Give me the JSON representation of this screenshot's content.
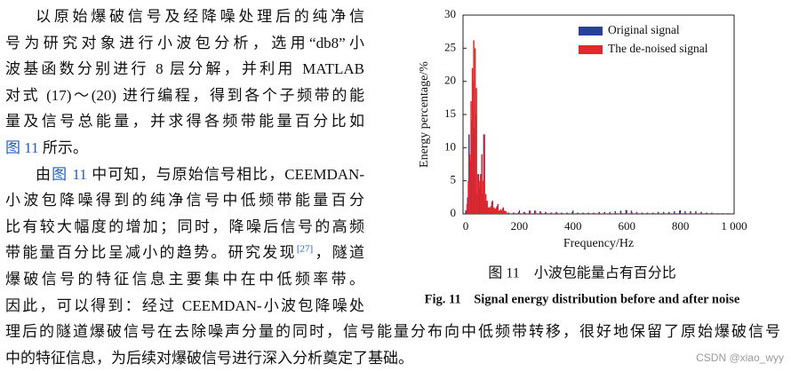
{
  "document": {
    "paragraph_1": [
      "以原始爆破信号及经降噪处理后的纯净信",
      "号为研究对象进行小波包分析，选用“db8”小",
      "波基函数分别进行 8 层分解，并利用 MATLAB",
      "对式 (17)～(20) 进行编程，得到各个子频带的能",
      "量及信号总能量，并求得各频带能量百分比如",
      [
        "图 11",
        " 所示。"
      ]
    ],
    "paragraph_2": [
      [
        "由",
        "图 11",
        " 中可知，与原始信号相比，CEEMDAN-"
      ],
      "小波包降噪得到的纯净信号中低频带能量百分",
      "比有较大幅度的增加；同时，降噪后信号的高频",
      [
        "带能量百分比呈减小的趋势。研究发现",
        "[27]",
        "，隧道"
      ],
      "爆破信号的特征信息主要集中在中低频率带。",
      "因此，可以得到：经过 CEEMDAN-小波包降噪处",
      "理后的隧道爆破信号在去除噪声分量的同时，信号能量分布向中低频带转移，很好地保留了原始爆破信号",
      "中的特征信息，为后续对爆破信号进行深入分析奠定了基础。"
    ]
  },
  "figure": {
    "caption_cn": "图 11　小波包能量占有百分比",
    "caption_en": "Fig. 11　Signal energy distribution before and after noise"
  },
  "chart_data": {
    "type": "bar",
    "x_label": "Frequency/Hz",
    "y_label": "Energy percentage/%",
    "x": [
      5,
      10,
      15,
      20,
      25,
      30,
      35,
      40,
      45,
      50,
      55,
      60,
      65,
      70,
      75,
      80,
      85,
      90,
      95,
      100,
      105,
      110,
      115,
      120,
      125,
      130,
      135,
      140,
      145,
      150,
      160,
      180,
      200,
      220,
      240,
      260,
      280,
      300,
      320,
      340,
      360,
      380,
      400,
      420,
      440,
      460,
      480,
      500,
      520,
      540,
      560,
      580,
      600,
      620,
      640,
      660,
      680,
      700,
      720,
      740,
      760,
      780,
      800,
      820,
      840,
      860,
      880,
      900,
      920,
      940,
      960,
      980
    ],
    "series": [
      {
        "name": "Original signal",
        "color": "#27409a",
        "values": [
          0.5,
          2.5,
          12,
          8,
          14,
          20,
          13,
          15,
          3,
          6,
          4,
          6,
          3,
          12,
          2,
          1.5,
          0.8,
          0.6,
          1,
          1.8,
          0.8,
          0.5,
          0.7,
          1.2,
          0.3,
          0.5,
          0.4,
          0.8,
          0.3,
          0.3,
          0.2,
          0.2,
          0.3,
          0.3,
          0.5,
          0.5,
          0.4,
          0.3,
          0.2,
          0.3,
          0.2,
          0.2,
          0.3,
          0.2,
          0.2,
          0.2,
          0.2,
          0.3,
          0.3,
          0.3,
          0.4,
          0.5,
          0.6,
          0.5,
          0.3,
          0.2,
          0.2,
          0.2,
          0.3,
          0.3,
          0.3,
          0.4,
          0.5,
          0.4,
          0.4,
          0.4,
          0.3,
          0.2,
          0.2,
          0.1,
          0.1,
          0.1
        ]
      },
      {
        "name": "The de-noised signal",
        "color": "#e5262b",
        "values": [
          1.5,
          5,
          9,
          17,
          22,
          26.2,
          25,
          19,
          6,
          5,
          6,
          9,
          5,
          12,
          3,
          2,
          1,
          1,
          1.2,
          2,
          1,
          0.8,
          1,
          1.5,
          0.5,
          0.7,
          0.5,
          1,
          0.5,
          0.4,
          0.2,
          0.2,
          0.2,
          0.3,
          0.5,
          0.5,
          0.3,
          0.2,
          0.2,
          0.2,
          0.1,
          0.1,
          0.1,
          0.1,
          0.1,
          0.1,
          0.1,
          0.1,
          0.1,
          0.1,
          0.1,
          0.2,
          0.2,
          0.2,
          0.1,
          0.1,
          0.1,
          0.1,
          0.1,
          0.1,
          0.1,
          0.1,
          0.1,
          0.1,
          0.1,
          0.1,
          0.1,
          0.1,
          0.1,
          0.1,
          0.1,
          0.1
        ]
      }
    ],
    "xlim": [
      -10,
      1000
    ],
    "ylim": [
      0,
      30
    ],
    "xticks": [
      0,
      200,
      400,
      600,
      800,
      {
        "value": 1000,
        "label": "1 000"
      }
    ],
    "yticks": [
      0,
      5,
      10,
      15,
      20,
      25,
      30
    ],
    "legend": "upper right"
  },
  "watermark": "CSDN @xiao_wyy"
}
